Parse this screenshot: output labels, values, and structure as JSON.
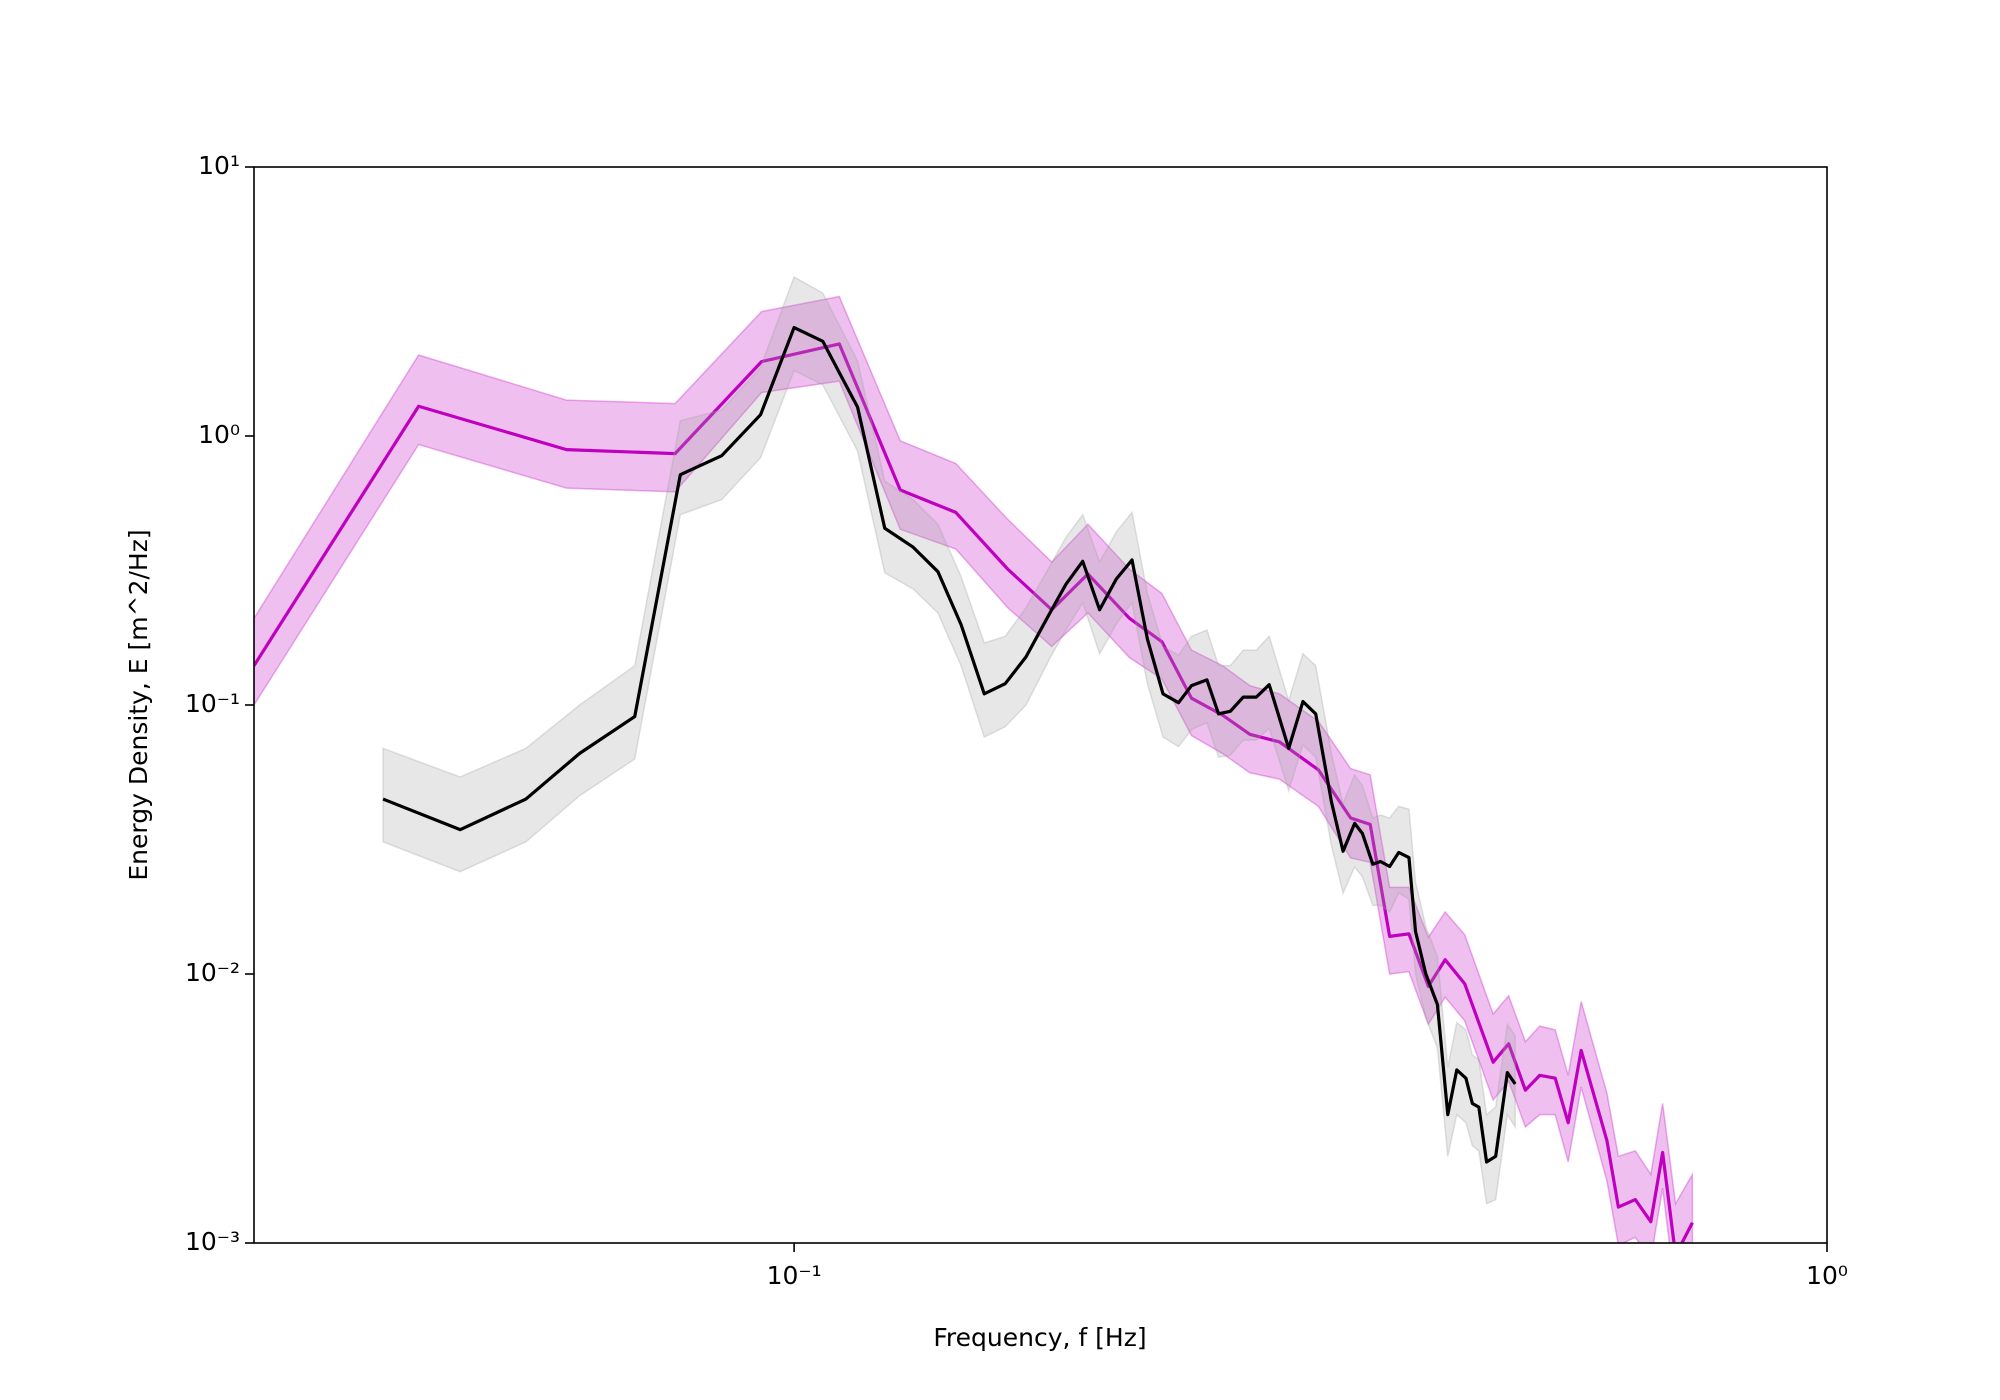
{
  "chart_data": {
    "type": "line",
    "xlabel": "Frequency, f [Hz]",
    "ylabel": "Energy Density, E [m^2/Hz]",
    "xscale": "log",
    "yscale": "log",
    "xlim": [
      0.03,
      1
    ],
    "ylim": [
      0.001,
      10
    ],
    "xticks": [
      {
        "value": 0.1,
        "label": "10⁻¹"
      },
      {
        "value": 1,
        "label": "10⁰"
      }
    ],
    "yticks": [
      {
        "value": 0.001,
        "label": "10⁻³"
      },
      {
        "value": 0.01,
        "label": "10⁻²"
      },
      {
        "value": 0.1,
        "label": "10⁻¹"
      },
      {
        "value": 1,
        "label": "10⁰"
      },
      {
        "value": 10,
        "label": "10¹"
      }
    ],
    "grid": false,
    "series": [
      {
        "color": "#bf00bf",
        "fill": "#bf00bf",
        "x": [
          0.03,
          0.0433,
          0.0602,
          0.0767,
          0.093,
          0.1106,
          0.1267,
          0.1434,
          0.161,
          0.1776,
          0.1925,
          0.2112,
          0.227,
          0.2425,
          0.2599,
          0.2762,
          0.2951,
          0.3218,
          0.3458,
          0.3612,
          0.3772,
          0.3938,
          0.4112,
          0.4269,
          0.4459,
          0.4751,
          0.4918,
          0.5105,
          0.5271,
          0.5456,
          0.5616,
          0.5781,
          0.6123,
          0.6281,
          0.6522,
          0.6752,
          0.6932,
          0.7135,
          0.7408
        ],
        "values": [
          0.14,
          1.29,
          0.89,
          0.86,
          1.89,
          2.2,
          0.63,
          0.52,
          0.32,
          0.226,
          0.307,
          0.21,
          0.172,
          0.106,
          0.0917,
          0.0778,
          0.0729,
          0.0574,
          0.038,
          0.036,
          0.0138,
          0.0141,
          0.009,
          0.0113,
          0.0092,
          0.0047,
          0.0055,
          0.0037,
          0.0042,
          0.0041,
          0.0028,
          0.0052,
          0.0024,
          0.00136,
          0.00145,
          0.0012,
          0.00217,
          0.0009,
          0.00119
        ],
        "lower": [
          0.1,
          0.93,
          0.64,
          0.62,
          1.45,
          1.6,
          0.45,
          0.38,
          0.23,
          0.165,
          0.22,
          0.15,
          0.125,
          0.077,
          0.066,
          0.056,
          0.053,
          0.042,
          0.027,
          0.026,
          0.01,
          0.0102,
          0.0065,
          0.0082,
          0.0067,
          0.0034,
          0.004,
          0.0027,
          0.003,
          0.003,
          0.002,
          0.0038,
          0.0017,
          0.00098,
          0.00105,
          0.00087,
          0.0016,
          0.00065,
          0.00086
        ],
        "upper": [
          0.21,
          2.0,
          1.36,
          1.32,
          2.9,
          3.3,
          0.96,
          0.79,
          0.49,
          0.34,
          0.47,
          0.32,
          0.26,
          0.16,
          0.14,
          0.118,
          0.11,
          0.087,
          0.058,
          0.055,
          0.021,
          0.021,
          0.0137,
          0.017,
          0.014,
          0.0071,
          0.0083,
          0.0056,
          0.0064,
          0.0062,
          0.0042,
          0.0079,
          0.0036,
          0.0021,
          0.0022,
          0.0018,
          0.0033,
          0.0014,
          0.0018
        ]
      },
      {
        "color": "#000000",
        "fill": "#a0a0a0",
        "x": [
          0.04,
          0.0475,
          0.055,
          0.062,
          0.0701,
          0.0776,
          0.0851,
          0.0928,
          0.1,
          0.1066,
          0.1152,
          0.1224,
          0.1304,
          0.1378,
          0.1451,
          0.1528,
          0.1601,
          0.1677,
          0.177,
          0.1833,
          0.1903,
          0.1976,
          0.2051,
          0.2124,
          0.2198,
          0.2276,
          0.2356,
          0.2425,
          0.251,
          0.2576,
          0.2644,
          0.2722,
          0.2802,
          0.2884,
          0.3012,
          0.3109,
          0.3199,
          0.3313,
          0.34,
          0.3489,
          0.355,
          0.3633,
          0.3696,
          0.3772,
          0.3849,
          0.3938,
          0.3996,
          0.4089,
          0.4196,
          0.4294,
          0.4381,
          0.4471,
          0.4536,
          0.4602,
          0.4682,
          0.4778,
          0.4904,
          0.499
        ],
        "values": [
          0.0447,
          0.0344,
          0.0447,
          0.0661,
          0.0906,
          0.718,
          0.845,
          1.2,
          2.53,
          2.25,
          1.28,
          0.454,
          0.386,
          0.313,
          0.199,
          0.11,
          0.12,
          0.151,
          0.221,
          0.281,
          0.342,
          0.226,
          0.294,
          0.346,
          0.176,
          0.11,
          0.102,
          0.118,
          0.124,
          0.0927,
          0.0947,
          0.107,
          0.107,
          0.119,
          0.069,
          0.103,
          0.0927,
          0.0437,
          0.0286,
          0.0363,
          0.0333,
          0.0256,
          0.0262,
          0.0251,
          0.0283,
          0.0271,
          0.0144,
          0.01,
          0.0077,
          0.003,
          0.0044,
          0.0041,
          0.0033,
          0.0032,
          0.002,
          0.0021,
          0.0043,
          0.0039
        ],
        "lower": [
          0.031,
          0.024,
          0.031,
          0.046,
          0.063,
          0.51,
          0.58,
          0.83,
          1.75,
          1.55,
          0.88,
          0.31,
          0.27,
          0.22,
          0.14,
          0.076,
          0.083,
          0.1,
          0.15,
          0.19,
          0.24,
          0.155,
          0.2,
          0.24,
          0.12,
          0.076,
          0.07,
          0.081,
          0.086,
          0.064,
          0.065,
          0.074,
          0.074,
          0.082,
          0.048,
          0.071,
          0.064,
          0.03,
          0.02,
          0.025,
          0.023,
          0.018,
          0.018,
          0.017,
          0.02,
          0.019,
          0.01,
          0.0069,
          0.0053,
          0.0021,
          0.003,
          0.0028,
          0.0023,
          0.0022,
          0.0014,
          0.00145,
          0.003,
          0.0027
        ],
        "upper": [
          0.069,
          0.054,
          0.069,
          0.1,
          0.14,
          1.14,
          1.25,
          1.8,
          3.9,
          3.4,
          1.9,
          0.68,
          0.58,
          0.47,
          0.3,
          0.17,
          0.18,
          0.23,
          0.33,
          0.42,
          0.51,
          0.34,
          0.44,
          0.52,
          0.26,
          0.165,
          0.153,
          0.18,
          0.19,
          0.14,
          0.14,
          0.16,
          0.16,
          0.18,
          0.104,
          0.155,
          0.14,
          0.066,
          0.043,
          0.055,
          0.05,
          0.038,
          0.039,
          0.038,
          0.042,
          0.041,
          0.022,
          0.015,
          0.0116,
          0.0045,
          0.0066,
          0.0062,
          0.005,
          0.0048,
          0.003,
          0.0032,
          0.0065,
          0.0059
        ]
      }
    ]
  }
}
